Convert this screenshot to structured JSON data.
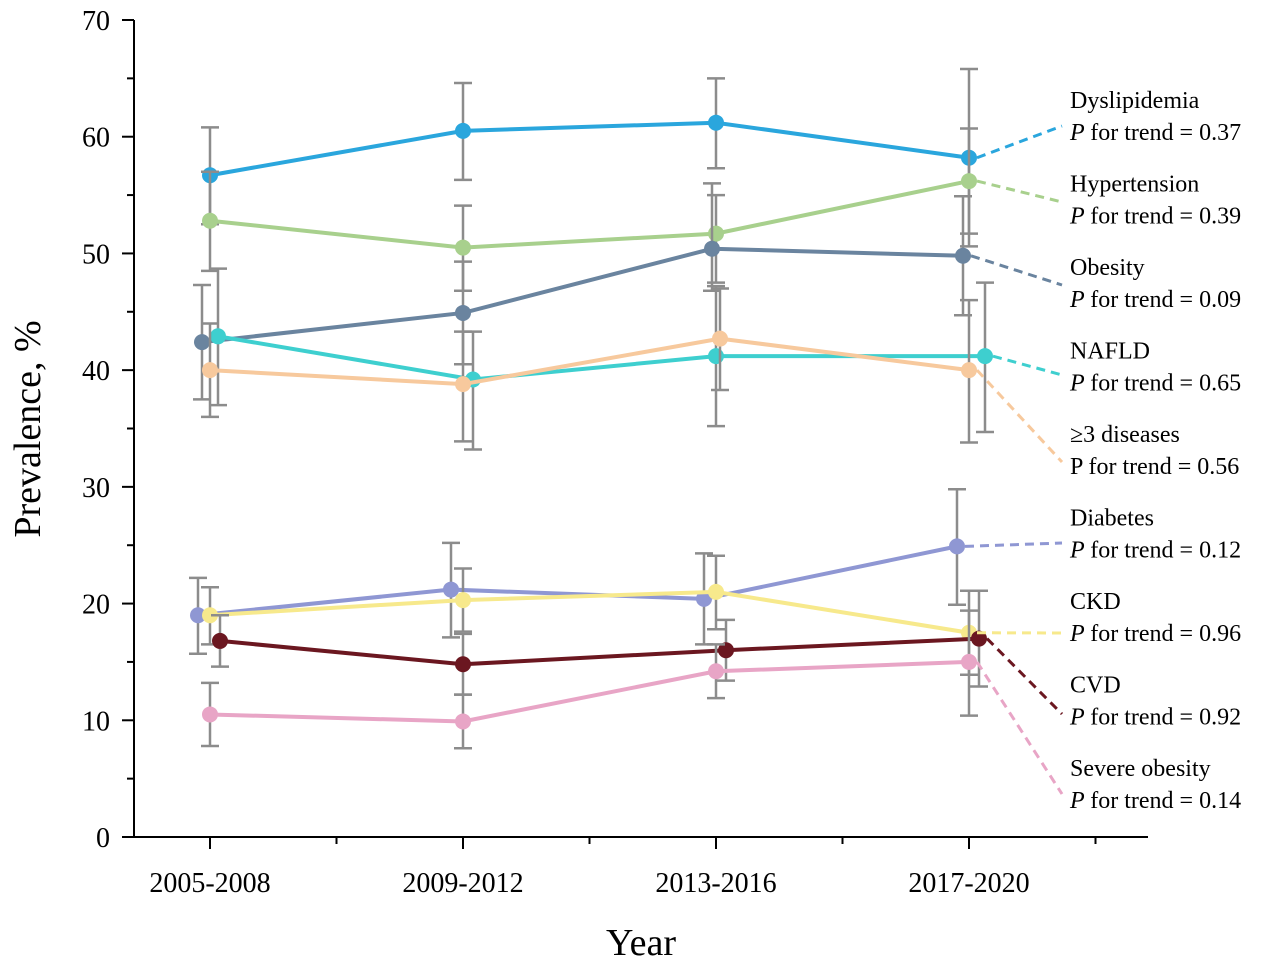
{
  "chart_data": {
    "type": "line",
    "xlabel": "Year",
    "ylabel": "Prevalence, %",
    "ylim": [
      0,
      70
    ],
    "yticks": [
      0,
      10,
      20,
      30,
      40,
      50,
      60,
      70
    ],
    "categories": [
      "2005-2008",
      "2009-2012",
      "2013-2016",
      "2017-2020"
    ],
    "series": [
      {
        "name": "Dyslipidemia",
        "trend": "for trend = 0.37",
        "trend_prefix": "P",
        "trend_italic": true,
        "color": "#2aa6dd",
        "values": [
          56.7,
          60.5,
          61.2,
          58.2
        ],
        "lower": [
          52.5,
          56.3,
          57.3,
          50.6
        ],
        "upper": [
          60.8,
          64.6,
          65.0,
          65.8
        ]
      },
      {
        "name": "Hypertension",
        "trend": "for trend = 0.39",
        "trend_prefix": "P",
        "trend_italic": true,
        "color": "#a8d08d",
        "values": [
          52.8,
          50.5,
          51.7,
          56.2
        ],
        "lower": [
          48.5,
          46.8,
          47.5,
          51.7
        ],
        "upper": [
          57.0,
          54.1,
          55.0,
          60.7
        ]
      },
      {
        "name": "Obesity",
        "trend": "for trend = 0.09",
        "trend_prefix": "P",
        "trend_italic": true,
        "color": "#6a849f",
        "values": [
          42.4,
          44.9,
          50.4,
          49.8
        ],
        "lower": [
          37.5,
          40.5,
          46.8,
          44.7
        ],
        "upper": [
          47.3,
          49.3,
          56.0,
          54.9
        ]
      },
      {
        "name": "NAFLD",
        "trend": "for trend = 0.65",
        "trend_prefix": "P",
        "trend_italic": true,
        "color": "#3ecfcf",
        "values": [
          42.9,
          39.2,
          41.2,
          41.2
        ],
        "lower": [
          37.0,
          33.2,
          35.2,
          34.7
        ],
        "upper": [
          48.7,
          43.3,
          47.2,
          47.5
        ]
      },
      {
        "name": "≥3 diseases",
        "trend": "for trend = 0.56",
        "trend_prefix": "P",
        "trend_italic": false,
        "color": "#f7c99d",
        "values": [
          40.0,
          38.8,
          42.7,
          40.0
        ],
        "lower": [
          36.0,
          33.9,
          38.3,
          33.8
        ],
        "upper": [
          44.0,
          43.3,
          47.0,
          46.0
        ]
      },
      {
        "name": "Diabetes",
        "trend": "for trend = 0.12",
        "trend_prefix": "P",
        "trend_italic": true,
        "color": "#8f97d3",
        "values": [
          19.0,
          21.2,
          20.4,
          24.9
        ],
        "lower": [
          15.7,
          17.1,
          16.5,
          19.9
        ],
        "upper": [
          22.2,
          25.2,
          24.3,
          29.8
        ]
      },
      {
        "name": "CKD",
        "trend": "for trend = 0.96",
        "trend_prefix": "P",
        "trend_italic": true,
        "color": "#f7e98c",
        "values": [
          19.0,
          20.3,
          21.0,
          17.5
        ],
        "lower": [
          16.5,
          17.6,
          17.8,
          13.9
        ],
        "upper": [
          21.4,
          23.0,
          24.1,
          21.1
        ]
      },
      {
        "name": "CVD",
        "trend": "for trend = 0.92",
        "trend_prefix": "P",
        "trend_italic": true,
        "color": "#6b1720",
        "values": [
          16.8,
          14.8,
          16.0,
          17.0
        ],
        "lower": [
          14.6,
          12.2,
          13.4,
          12.9
        ],
        "upper": [
          19.0,
          17.4,
          18.6,
          21.1
        ]
      },
      {
        "name": "Severe obesity",
        "trend": "for trend = 0.14",
        "trend_prefix": "P",
        "trend_italic": true,
        "color": "#e8a5c6",
        "values": [
          10.5,
          9.9,
          14.2,
          15.0
        ],
        "lower": [
          7.8,
          7.6,
          11.9,
          10.4
        ],
        "upper": [
          13.2,
          12.2,
          16.5,
          19.4
        ]
      }
    ]
  }
}
